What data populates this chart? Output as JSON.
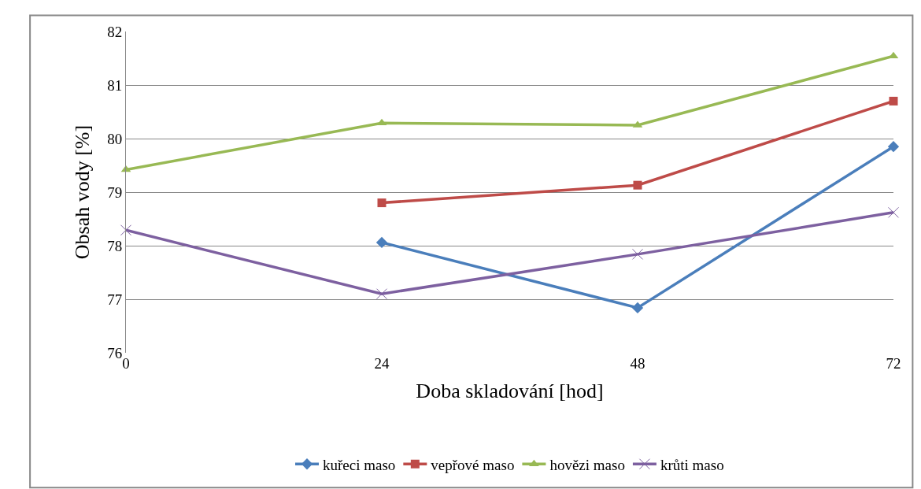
{
  "chart_data": {
    "type": "line",
    "xlabel": "Doba skladování [hod]",
    "ylabel": "Obsah vody [%]",
    "x": [
      0,
      24,
      48,
      72
    ],
    "xlim": [
      0,
      72
    ],
    "xticks": [
      0,
      24,
      48,
      72
    ],
    "ylim": [
      76,
      82
    ],
    "yticks": [
      76,
      77,
      78,
      79,
      80,
      81,
      82
    ],
    "grid": "y",
    "legend": "bottom",
    "line_style": "solid",
    "series": [
      {
        "name": "kuřeci maso",
        "color": "#4a7ebb",
        "marker": "diamond",
        "values": [
          null,
          78.06,
          76.84,
          79.85
        ]
      },
      {
        "name": "vepřové maso",
        "color": "#be4b48",
        "marker": "square",
        "values": [
          null,
          78.8,
          79.13,
          80.7
        ]
      },
      {
        "name": "hovězi maso",
        "color": "#98b954",
        "marker": "triangle",
        "values": [
          79.42,
          80.29,
          80.25,
          81.54
        ]
      },
      {
        "name": "krůti maso",
        "color": "#7d60a0",
        "marker": "cross",
        "values": [
          78.29,
          77.1,
          77.84,
          78.62
        ]
      }
    ]
  }
}
